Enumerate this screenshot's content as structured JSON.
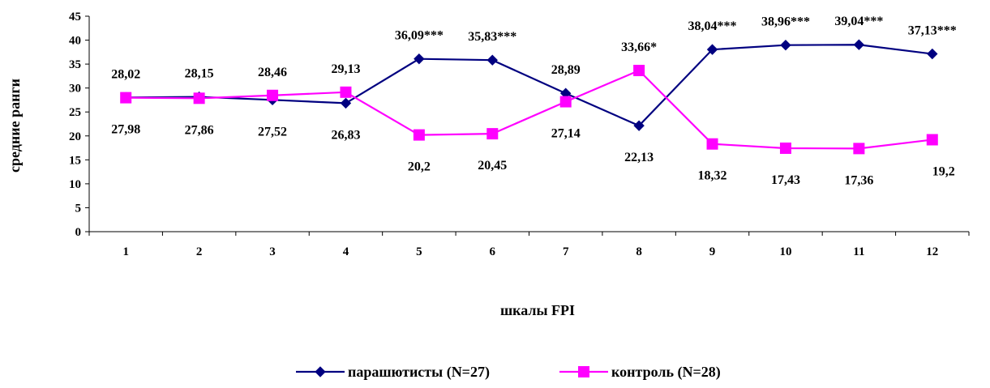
{
  "chart_data": {
    "type": "line",
    "x": [
      "1",
      "2",
      "3",
      "4",
      "5",
      "6",
      "7",
      "8",
      "9",
      "10",
      "11",
      "12"
    ],
    "xlabel": "шкалы FPI",
    "ylabel": "средние ранги",
    "ylim": [
      0,
      45
    ],
    "yticks": [
      "0",
      "5",
      "10",
      "15",
      "20",
      "25",
      "30",
      "35",
      "40",
      "45"
    ],
    "grid": false,
    "legend_position": "bottom",
    "series": [
      {
        "name": "парашютисты (N=27)",
        "color": "#000080",
        "marker": "diamond",
        "values": [
          28.02,
          28.15,
          27.52,
          26.83,
          36.09,
          35.83,
          28.89,
          22.13,
          38.04,
          38.96,
          39.04,
          37.13
        ],
        "labels": [
          "28,02",
          "28,15",
          "27,52",
          "26,83",
          "36,09***",
          "35,83***",
          "28,89",
          "22,13",
          "38,04***",
          "38,96***",
          "39,04***",
          "37,13***"
        ]
      },
      {
        "name": "контроль (N=28)",
        "color": "#FF00FF",
        "marker": "square",
        "values": [
          27.98,
          27.86,
          28.46,
          29.13,
          20.2,
          20.45,
          27.14,
          33.66,
          18.32,
          17.43,
          17.36,
          19.2
        ],
        "labels": [
          "27,98",
          "27,86",
          "28,46",
          "29,13",
          "20,2",
          "20,45",
          "27,14",
          "33,66*",
          "18,32",
          "17,43",
          "17,36",
          "19,2"
        ]
      }
    ]
  }
}
